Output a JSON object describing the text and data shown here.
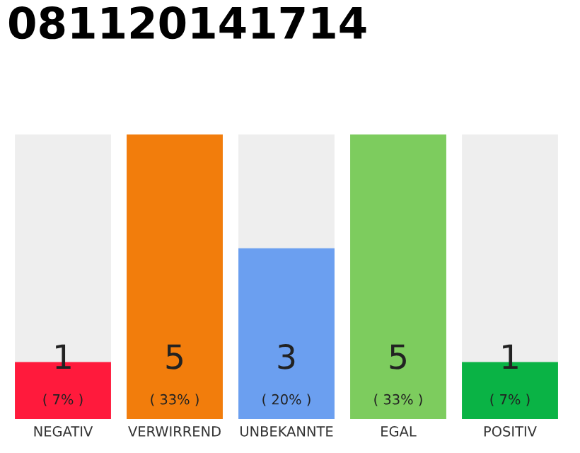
{
  "chart_data": {
    "type": "bar",
    "title": "081120141714",
    "categories": [
      "NEGATIV",
      "VERWIRREND",
      "UNBEKANNTE",
      "EGAL",
      "POSITIV"
    ],
    "values": [
      1,
      5,
      3,
      5,
      1
    ],
    "colors": [
      "#ff1a3c",
      "#f27d0c",
      "#6b9ff0",
      "#7dcc5e",
      "#0ab345"
    ],
    "value_labels": [
      "1\n( 7% )",
      "5\n( 33% )",
      "3\n( 20% )",
      "5\n( 33% )",
      "1\n( 7% )"
    ],
    "ylim": [
      0,
      5
    ],
    "tick_labels": "x",
    "grid": false,
    "legend": false
  }
}
